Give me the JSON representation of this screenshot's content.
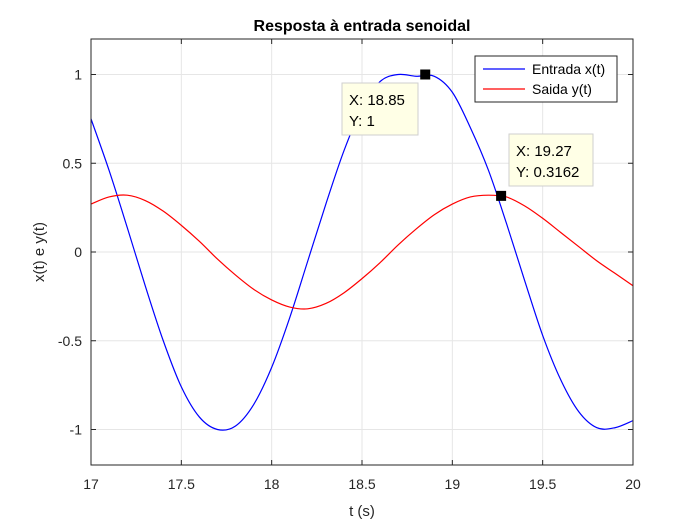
{
  "chart_data": {
    "type": "line",
    "title": "Resposta à entrada senoidal",
    "xlabel": "t (s)",
    "ylabel": "x(t) e y(t)",
    "xlim": [
      17,
      20
    ],
    "ylim": [
      -1.2,
      1.2
    ],
    "grid": true,
    "xticks": [
      17,
      17.5,
      18,
      18.5,
      19,
      19.5,
      20
    ],
    "xtick_labels": [
      "17",
      "17.5",
      "18",
      "18.5",
      "19",
      "19.5",
      "20"
    ],
    "yticks": [
      -1,
      -0.5,
      0,
      0.5,
      1
    ],
    "ytick_labels": [
      "-1",
      "-0.5",
      "0",
      "0.5",
      "1"
    ],
    "legend_position": "top-right",
    "series": [
      {
        "name": "Entrada x(t)",
        "color": "#0000ff",
        "x": [
          17.0,
          17.1,
          17.2,
          17.3,
          17.4,
          17.5,
          17.6,
          17.7,
          17.8,
          17.9,
          18.0,
          18.1,
          18.2,
          18.3,
          18.4,
          18.5,
          18.6,
          18.7,
          18.8,
          18.9,
          19.0,
          19.1,
          19.2,
          19.3,
          19.4,
          19.5,
          19.6,
          19.7,
          19.8,
          19.9,
          20.0
        ],
        "y": [
          0.75,
          0.46,
          0.14,
          -0.19,
          -0.5,
          -0.76,
          -0.93,
          -1.0,
          -0.98,
          -0.86,
          -0.65,
          -0.37,
          -0.05,
          0.27,
          0.57,
          0.81,
          0.96,
          1.0,
          0.99,
          0.99,
          0.9,
          0.7,
          0.46,
          0.16,
          -0.16,
          -0.47,
          -0.72,
          -0.9,
          -0.99,
          -0.99,
          -0.95
        ]
      },
      {
        "name": "Saida y(t)",
        "color": "#ff0000",
        "x": [
          17.0,
          17.1,
          17.2,
          17.3,
          17.4,
          17.5,
          17.6,
          17.7,
          17.8,
          17.9,
          18.0,
          18.1,
          18.2,
          18.3,
          18.4,
          18.5,
          18.6,
          18.7,
          18.8,
          18.9,
          19.0,
          19.1,
          19.2,
          19.3,
          19.4,
          19.5,
          19.6,
          19.7,
          19.8,
          19.9,
          20.0
        ],
        "y": [
          0.27,
          0.31,
          0.32,
          0.29,
          0.23,
          0.15,
          0.06,
          -0.04,
          -0.13,
          -0.21,
          -0.27,
          -0.31,
          -0.32,
          -0.29,
          -0.23,
          -0.15,
          -0.06,
          0.04,
          0.13,
          0.21,
          0.27,
          0.31,
          0.32,
          0.31,
          0.26,
          0.19,
          0.11,
          0.03,
          -0.05,
          -0.12,
          -0.19
        ]
      }
    ],
    "annotations": [
      {
        "name": "datatip-input-peak",
        "x": 18.85,
        "y": 1,
        "lines": [
          "X: 18.85",
          "Y: 1"
        ]
      },
      {
        "name": "datatip-output-peak",
        "x": 19.27,
        "y": 0.3162,
        "lines": [
          "X: 19.27",
          "Y: 0.3162"
        ]
      }
    ]
  }
}
